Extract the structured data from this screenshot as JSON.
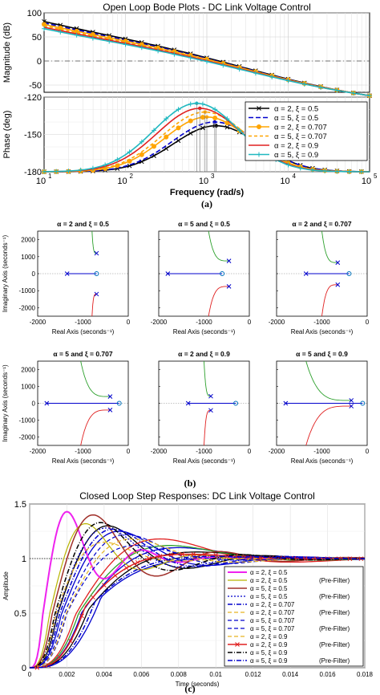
{
  "colors": {
    "black": "#000000",
    "blue": "#0000cc",
    "orange": "#ffa500",
    "gold": "#e6b422",
    "red": "#e02020",
    "cyan": "#20b8c0",
    "magenta": "#ee22ee",
    "brown": "#a0302a",
    "olive": "#b8b400",
    "green": "#2ca02c",
    "zero": "#0072bd"
  },
  "chart_data": [
    {
      "id": "bode",
      "type": "line",
      "title": "Open Loop Bode Plots - DC Link Voltage Control",
      "caption": "(a)",
      "xlabel": "Frequency  (rad/s)",
      "x_scale": "log",
      "x_ticks": [
        "10",
        "10",
        "10",
        "10",
        "10"
      ],
      "x_tick_exponents": [
        "1",
        "2",
        "3",
        "4",
        "5"
      ],
      "xlim": [
        10,
        100000
      ],
      "grid": true,
      "magnitude": {
        "ylabel": "Magnitude (dB)",
        "ylim": [
          -65,
          100
        ],
        "y_ticks": [
          "100",
          "50",
          "0",
          "-50"
        ]
      },
      "phase": {
        "ylabel": "Phase (deg)",
        "ylim": [
          -180,
          -120
        ],
        "y_ticks": [
          "-120",
          "-150",
          "-180"
        ]
      },
      "legend": {
        "position": "right",
        "entries": [
          "α = 2,  ξ = 0.5",
          "α = 5,  ξ = 0.5",
          "α = 2,  ξ = 0.707",
          "α = 5,  ξ = 0.707",
          "α = 2,  ξ = 0.9",
          "α = 5,  ξ = 0.9"
        ]
      },
      "series": [
        {
          "name": "α = 2,  ξ = 0.5",
          "color": "black",
          "dash": "",
          "marker": "x",
          "mag_at_10": 82,
          "phase_peak": -143,
          "peak_freq": 1300
        },
        {
          "name": "α = 5,  ξ = 0.5",
          "color": "blue",
          "dash": "6,3",
          "marker": "",
          "mag_at_10": 79,
          "phase_peak": -140,
          "peak_freq": 1250
        },
        {
          "name": "α = 2,  ξ = 0.707",
          "color": "orange",
          "dash": "",
          "marker": "o",
          "mag_at_10": 76,
          "phase_peak": -136,
          "peak_freq": 1000
        },
        {
          "name": "α = 5,  ξ = 0.707",
          "color": "orange",
          "dash": "4,3",
          "marker": "",
          "mag_at_10": 73,
          "phase_peak": -132,
          "peak_freq": 950
        },
        {
          "name": "α = 2,  ξ = 0.9",
          "color": "red",
          "dash": "",
          "marker": "",
          "mag_at_10": 70,
          "phase_peak": -129,
          "peak_freq": 820
        },
        {
          "name": "α = 5,  ξ = 0.9",
          "color": "cyan",
          "dash": "",
          "marker": "+",
          "mag_at_10": 67,
          "phase_peak": -125,
          "peak_freq": 750
        }
      ]
    },
    {
      "id": "rootlocus",
      "type": "scatter",
      "caption": "(b)",
      "xlabel": "Real Axis (seconds⁻¹)",
      "ylabel": "Imaginary Axis (seconds⁻¹)",
      "xlim": [
        -2000,
        0
      ],
      "ylim": [
        -2500,
        2500
      ],
      "x_ticks": [
        "-2000",
        "-1000",
        "0"
      ],
      "y_ticks": [
        "2000",
        "1000",
        "0",
        "-1000",
        "-2000"
      ],
      "grid": false,
      "plots": [
        {
          "title": "α = 2  and  ξ = 0.5",
          "pole_real": -1350,
          "cpole_real": -700,
          "cpole_imag": 1200,
          "zero_real": -700,
          "branch_start": -800
        },
        {
          "title": "α = 5  and  ξ = 0.5",
          "pole_real": -1800,
          "cpole_real": -450,
          "cpole_imag": 750,
          "zero_real": -600,
          "branch_start": -900
        },
        {
          "title": "α = 2  and  ξ = 0.707",
          "pole_real": -1350,
          "cpole_real": -650,
          "cpole_imag": 650,
          "zero_real": -400,
          "branch_start": -1000
        },
        {
          "title": "α = 5  and  ξ = 0.707",
          "pole_real": -1800,
          "cpole_real": -400,
          "cpole_imag": 400,
          "zero_real": -200,
          "branch_start": -1050
        },
        {
          "title": "α = 2  and  ξ = 0.9",
          "pole_real": -1350,
          "cpole_real": -850,
          "cpole_imag": 420,
          "zero_real": -300,
          "branch_start": -1000
        },
        {
          "title": "α = 5  and  ξ = 0.9",
          "pole_real": -1800,
          "cpole_real": -350,
          "cpole_imag": 170,
          "zero_real": -100,
          "branch_start": -1350
        }
      ]
    },
    {
      "id": "step",
      "type": "line",
      "title": "Closed Loop Step Responses: DC Link Voltage Control",
      "caption": "(c)",
      "xlabel": "Time (seconds)",
      "ylabel": "Amplitude",
      "xlim": [
        0,
        0.018
      ],
      "ylim": [
        0,
        1.5
      ],
      "x_ticks": [
        "0",
        "0.002",
        "0.004",
        "0.006",
        "0.008",
        "0.01",
        "0.012",
        "0.014",
        "0.016",
        "0.018"
      ],
      "y_ticks": [
        "0",
        "0.5",
        "1",
        "1.5"
      ],
      "grid": true,
      "legend": {
        "position": "bottom-right",
        "entries": [
          {
            "label": "α = 2,  ξ = 0.5",
            "extra": ""
          },
          {
            "label": "α = 2,  ξ = 0.5",
            "extra": "(Pre-Filter)"
          },
          {
            "label": "α = 5,  ξ = 0.5",
            "extra": ""
          },
          {
            "label": "α = 5,  ξ = 0.5",
            "extra": "(Pre-Filter)"
          },
          {
            "label": "α = 2,  ξ = 0.707",
            "extra": ""
          },
          {
            "label": "α = 2,  ξ = 0.707",
            "extra": "(Pre-Filter)"
          },
          {
            "label": "α = 5,  ξ = 0.707",
            "extra": ""
          },
          {
            "label": "α = 5,  ξ = 0.707",
            "extra": "(Pre-Filter)"
          },
          {
            "label": "α = 2,  ξ = 0.9",
            "extra": ""
          },
          {
            "label": "α = 2,  ξ = 0.9",
            "extra": "(Pre-Filter)"
          },
          {
            "label": "α = 5,  ξ = 0.9",
            "extra": ""
          },
          {
            "label": "α = 5,  ξ = 0.9",
            "extra": "(Pre-Filter)"
          }
        ]
      },
      "series": [
        {
          "name": "α = 2,  ξ = 0.5",
          "color": "magenta",
          "dash": "",
          "marker": "",
          "width": 2,
          "peak_t": 0.002,
          "peak": 1.43,
          "zeta": 0.5
        },
        {
          "name": "α = 2,  ξ = 0.5 (Pre-Filter)",
          "color": "olive",
          "dash": "",
          "marker": "",
          "width": 1.2,
          "peak_t": 0.003,
          "peak": 1.32,
          "zeta": 0.5
        },
        {
          "name": "α = 5,  ξ = 0.5",
          "color": "brown",
          "dash": "",
          "marker": "",
          "width": 1.5,
          "peak_t": 0.0034,
          "peak": 1.4,
          "zeta": 0.5
        },
        {
          "name": "α = 5,  ξ = 0.5 (Pre-Filter)",
          "color": "blue",
          "dash": "2,2",
          "marker": "",
          "width": 1.2,
          "peak_t": 0.0041,
          "peak": 1.28,
          "zeta": 0.5
        },
        {
          "name": "α = 2,  ξ = 0.707",
          "color": "blue",
          "dash": "6,2,1,2",
          "marker": "",
          "width": 1.5,
          "peak_t": 0.0045,
          "peak": 1.27,
          "zeta": 0.6
        },
        {
          "name": "α = 2,  ξ = 0.707 (Pre-Filter)",
          "color": "gold",
          "dash": "5,3",
          "marker": "",
          "width": 1.2,
          "peak_t": 0.004,
          "peak": 1.15,
          "zeta": 0.7
        },
        {
          "name": "α = 5,  ξ = 0.707",
          "color": "blue",
          "dash": "5,3",
          "marker": "",
          "width": 1.2,
          "peak_t": 0.0052,
          "peak": 1.22,
          "zeta": 0.6
        },
        {
          "name": "α = 5,  ξ = 0.707 (Pre-Filter)",
          "color": "blue",
          "dash": "5,3",
          "marker": "",
          "width": 1.2,
          "peak_t": 0.0057,
          "peak": 1.12,
          "zeta": 0.7
        },
        {
          "name": "α = 2,  ξ = 0.9",
          "color": "gold",
          "dash": "5,3",
          "marker": "",
          "width": 1.2,
          "peak_t": 0.0055,
          "peak": 1.18,
          "zeta": 0.65
        },
        {
          "name": "α = 2,  ξ = 0.9 (Pre-Filter)",
          "color": "red",
          "dash": "",
          "marker": "x",
          "width": 1.5,
          "peak_t": 0.0085,
          "peak": 1.04,
          "zeta": 0.85
        },
        {
          "name": "α = 5,  ξ = 0.9",
          "color": "black",
          "dash": "6,2,1,2",
          "marker": "",
          "width": 1.5,
          "peak_t": 0.0038,
          "peak": 1.33,
          "zeta": 0.5
        },
        {
          "name": "α = 5,  ξ = 0.9 (Pre-Filter)",
          "color": "blue",
          "dash": "6,2,1,2",
          "marker": "",
          "width": 1.5,
          "peak_t": 0.01,
          "peak": 1.02,
          "zeta": 0.95
        }
      ],
      "extra_solid_series": [
        {
          "color": "black",
          "peak_t": 0.0042,
          "peak": 1.3,
          "zeta": 0.55
        },
        {
          "color": "blue",
          "peak_t": 0.0048,
          "peak": 1.25,
          "zeta": 0.58
        },
        {
          "color": "blue",
          "peak_t": 0.008,
          "peak": 1.1,
          "zeta": 0.75
        },
        {
          "color": "red",
          "peak_t": 0.007,
          "peak": 1.18,
          "zeta": 0.65
        },
        {
          "color": "black",
          "peak_t": 0.009,
          "peak": 1.06,
          "zeta": 0.8
        },
        {
          "color": "blue",
          "peak_t": 0.011,
          "peak": 1.01,
          "zeta": 0.95
        },
        {
          "color": "green",
          "peak_t": 0.0075,
          "peak": 1.12,
          "zeta": 0.72
        }
      ]
    }
  ]
}
